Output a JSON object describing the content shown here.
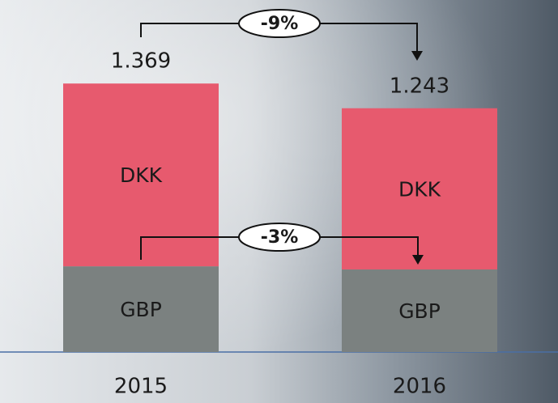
{
  "chart_data": {
    "type": "stacked_bar",
    "categories": [
      "2015",
      "2016"
    ],
    "series": [
      {
        "name": "GBP",
        "color": "#7b8180",
        "values": [
          0.437,
          0.421
        ]
      },
      {
        "name": "DKK",
        "color": "#e75a6e",
        "values": [
          0.932,
          0.822
        ]
      }
    ],
    "totals": [
      1.369,
      1.243
    ],
    "annotations": [
      "-9%",
      "-3%"
    ],
    "ylim": [
      0,
      1.7
    ]
  }
}
